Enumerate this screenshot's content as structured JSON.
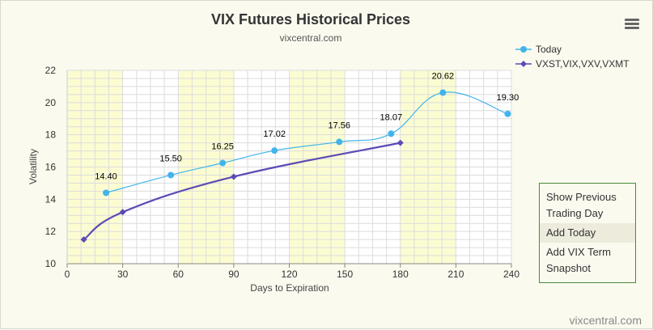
{
  "chart_data": {
    "type": "line",
    "title": "VIX Futures Historical Prices",
    "subtitle": "vixcentral.com",
    "xlabel": "Days to Expiration",
    "ylabel": "Volatility",
    "xlim": [
      0,
      240
    ],
    "ylim": [
      10,
      22
    ],
    "xticks": [
      0,
      30,
      60,
      90,
      120,
      150,
      180,
      210,
      240
    ],
    "yticks": [
      10,
      12,
      14,
      16,
      18,
      20,
      22
    ],
    "grid": true,
    "legend_position": "top-right",
    "bands": [
      [
        0,
        30
      ],
      [
        60,
        90
      ],
      [
        120,
        150
      ],
      [
        180,
        210
      ]
    ],
    "colors": {
      "today": "#42b4ec",
      "term": "#5b4bb5",
      "band": "#fcfcd2",
      "grid": "#dcdcdc"
    },
    "series": [
      {
        "name": "Today",
        "x": [
          21,
          56,
          84,
          112,
          147,
          175,
          203,
          238
        ],
        "y": [
          14.4,
          15.5,
          16.25,
          17.02,
          17.56,
          18.07,
          20.62,
          19.3
        ],
        "labels": [
          "14.40",
          "15.50",
          "16.25",
          "17.02",
          "17.56",
          "18.07",
          "20.62",
          "19.30"
        ],
        "marker": "circle"
      },
      {
        "name": "VXST,VIX,VXV,VXMT",
        "x": [
          9,
          30,
          90,
          180
        ],
        "y": [
          11.5,
          13.2,
          15.4,
          17.5
        ],
        "marker": "diamond"
      }
    ]
  },
  "menu_icon": "hamburger-menu-icon",
  "credit": "vixcentral.com",
  "side_panel": {
    "show_previous": "Show Previous Trading Day",
    "add_today": "Add Today",
    "add_vix_term": "Add VIX Term Snapshot"
  }
}
